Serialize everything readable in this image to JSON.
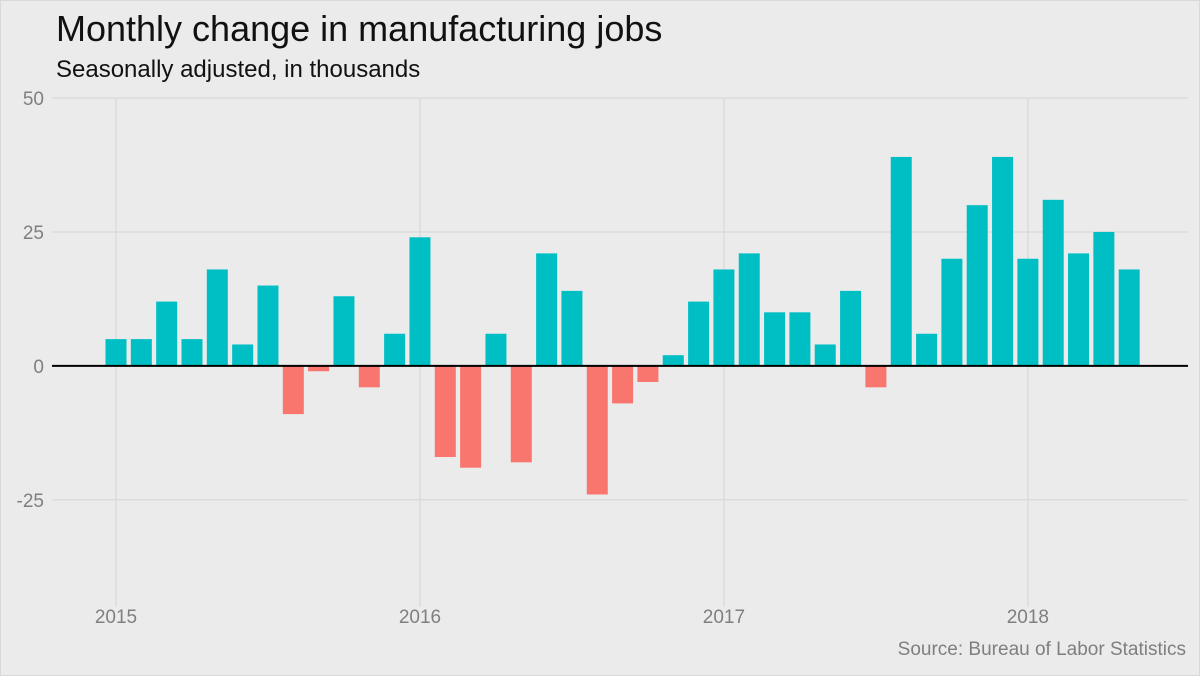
{
  "chart_data": {
    "type": "bar",
    "title": "Monthly change in manufacturing jobs",
    "subtitle": "Seasonally adjusted, in thousands",
    "source": "Source: Bureau of Labor Statistics",
    "xlabel": "",
    "ylabel": "",
    "ylim": [
      -45,
      50
    ],
    "y_ticks": [
      50,
      25,
      0,
      -25
    ],
    "y_tick_labels": [
      "50",
      "25",
      "0",
      "-25"
    ],
    "x_ticks": [
      {
        "label": "2015",
        "index": 0
      },
      {
        "label": "2016",
        "index": 12
      },
      {
        "label": "2017",
        "index": 24
      },
      {
        "label": "2018",
        "index": 36
      }
    ],
    "grid": true,
    "legend": "none",
    "colors": {
      "positive": "#00bfc4",
      "negative": "#f8766d",
      "grid": "#d4d4d4",
      "zero_line": "#000000",
      "background": "#ebebeb"
    },
    "categories": [
      "2015-01",
      "2015-02",
      "2015-03",
      "2015-04",
      "2015-05",
      "2015-06",
      "2015-07",
      "2015-08",
      "2015-09",
      "2015-10",
      "2015-11",
      "2015-12",
      "2016-01",
      "2016-02",
      "2016-03",
      "2016-04",
      "2016-05",
      "2016-06",
      "2016-07",
      "2016-08",
      "2016-09",
      "2016-10",
      "2016-11",
      "2016-12",
      "2017-01",
      "2017-02",
      "2017-03",
      "2017-04",
      "2017-05",
      "2017-06",
      "2017-07",
      "2017-08",
      "2017-09",
      "2017-10",
      "2017-11",
      "2017-12",
      "2018-01",
      "2018-02",
      "2018-03",
      "2018-04",
      "2018-05"
    ],
    "values": [
      5,
      5,
      12,
      5,
      18,
      4,
      15,
      -9,
      -1,
      13,
      -4,
      6,
      24,
      -17,
      -19,
      6,
      -18,
      21,
      14,
      -24,
      -7,
      -3,
      2,
      12,
      18,
      21,
      10,
      10,
      4,
      14,
      -4,
      39,
      6,
      20,
      30,
      39,
      20,
      31,
      21,
      25,
      18
    ]
  }
}
